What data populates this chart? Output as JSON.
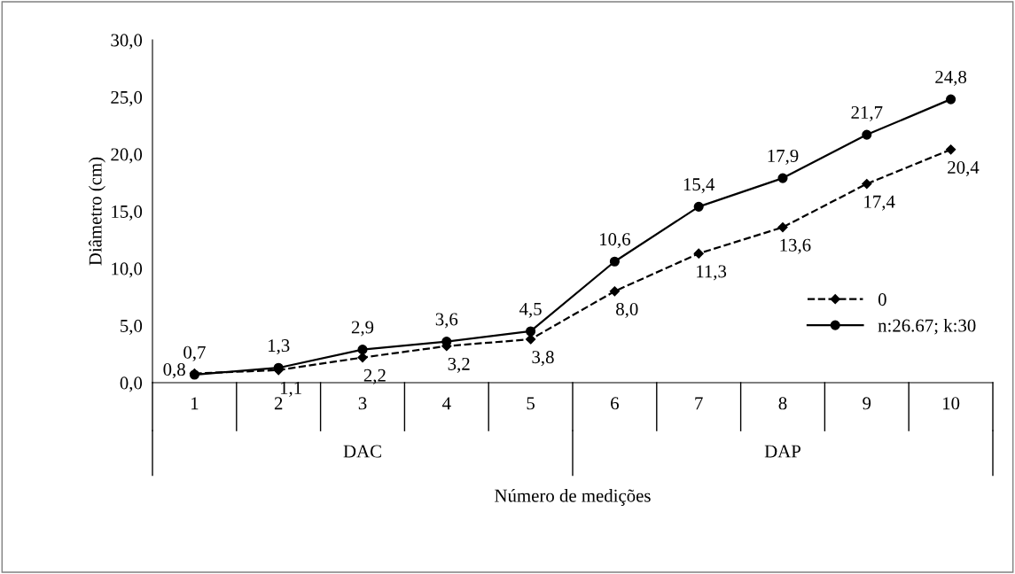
{
  "chart_data": {
    "type": "line",
    "xlabel": "Número de medições",
    "ylabel": "Diâmetro (cm)",
    "categories": [
      "1",
      "2",
      "3",
      "4",
      "5",
      "6",
      "7",
      "8",
      "9",
      "10"
    ],
    "ylim": [
      0,
      30
    ],
    "yticks": [
      {
        "value": 0,
        "label": "0,0"
      },
      {
        "value": 5,
        "label": "5,0"
      },
      {
        "value": 10,
        "label": "10,0"
      },
      {
        "value": 15,
        "label": "15,0"
      },
      {
        "value": 20,
        "label": "20,0"
      },
      {
        "value": 25,
        "label": "25,0"
      },
      {
        "value": 30,
        "label": "30,0"
      }
    ],
    "grid": false,
    "legend": "right",
    "annotations": [
      "DAC",
      "DAP"
    ],
    "series": [
      {
        "name": "0",
        "color": "#000000",
        "marker": "diamond",
        "line_style": "dashed",
        "values": [
          0.8,
          1.1,
          2.2,
          3.2,
          3.8,
          8.0,
          11.3,
          13.6,
          17.4,
          20.4
        ],
        "value_labels": [
          "0,8",
          "1,1",
          "2,2",
          "3,2",
          "3,8",
          "8,0",
          "11,3",
          "13,6",
          "17,4",
          "20,4"
        ]
      },
      {
        "name": "n:26.67; k:30",
        "color": "#000000",
        "marker": "circle",
        "line_style": "solid",
        "values": [
          0.7,
          1.3,
          2.9,
          3.6,
          4.5,
          10.6,
          15.4,
          17.9,
          21.7,
          24.8
        ],
        "value_labels": [
          "0,7",
          "1,3",
          "2,9",
          "3,6",
          "4,5",
          "10,6",
          "15,4",
          "17,9",
          "21,7",
          "24,8"
        ]
      }
    ]
  }
}
